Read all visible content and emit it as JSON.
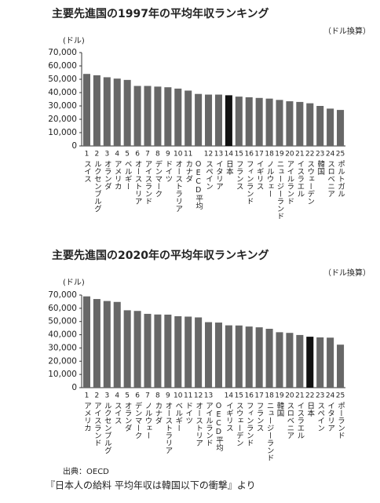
{
  "chart_data": [
    {
      "type": "bar",
      "title": "主要先進国の1997年の平均年収ランキング",
      "ylabel": "(ドル)",
      "unit_note": "（ドル換算）",
      "categories": [
        "スイス",
        "ルクセンブルグ",
        "オランダ",
        "アメリカ",
        "ベルギー",
        "オーストリア",
        "アイスランド",
        "デンマーク",
        "ドイツ",
        "オーストラリア",
        "カナダ",
        "OECD平均",
        "スペイン",
        "イタリア",
        "日本",
        "フランス",
        "フィンランド",
        "イギリス",
        "ノルウェー",
        "ニュージーランド",
        "アイルランド",
        "イスラエル",
        "スウェーデン",
        "韓国",
        "スロベニア",
        "ポルトガル"
      ],
      "ranks": [
        "1",
        "2",
        "3",
        "4",
        "5",
        "6",
        "7",
        "8",
        "9",
        "10",
        "11",
        null,
        "12",
        "13",
        "14",
        "15",
        "16",
        "17",
        "18",
        "19",
        "20",
        "21",
        "22",
        "23",
        "24",
        "25"
      ],
      "values": [
        54000,
        53000,
        51500,
        50500,
        49500,
        45000,
        45000,
        44500,
        44000,
        43000,
        41500,
        39000,
        38500,
        38500,
        38000,
        37000,
        36500,
        36000,
        35500,
        34500,
        33500,
        33000,
        32000,
        30000,
        28000,
        27000
      ],
      "colors": [
        "#676767",
        "#676767",
        "#676767",
        "#676767",
        "#676767",
        "#676767",
        "#676767",
        "#676767",
        "#676767",
        "#676767",
        "#676767",
        "#676767",
        "#676767",
        "#676767",
        "#111111",
        "#676767",
        "#676767",
        "#676767",
        "#676767",
        "#676767",
        "#676767",
        "#676767",
        "#676767",
        "#676767",
        "#676767",
        "#676767"
      ],
      "ylim": [
        0,
        70000
      ],
      "yticks": [
        0,
        {
          "value": 10000,
          "label": "10,000"
        },
        {
          "value": 20000,
          "label": "20,000"
        },
        {
          "value": 30000,
          "label": "30,000"
        },
        {
          "value": 40000,
          "label": "40,000"
        },
        {
          "value": 50000,
          "label": "50,000"
        },
        {
          "value": 60000,
          "label": "60,000"
        },
        {
          "value": 70000,
          "label": "70,000"
        }
      ]
    },
    {
      "type": "bar",
      "title": "主要先進国の2020年の平均年収ランキング",
      "ylabel": "(ドル)",
      "unit_note": "（ドル換算）",
      "categories": [
        "アメリカ",
        "アイスランド",
        "ルクセンブルグ",
        "スイス",
        "オランダ",
        "デンマーク",
        "ノルウェー",
        "カナダ",
        "オーストラリア",
        "ベルギー",
        "ドイツ",
        "オーストリア",
        "アイルランド",
        "OECD平均",
        "イギリス",
        "スウェーデン",
        "フィンランド",
        "フランス",
        "ニュージーランド",
        "韓国",
        "スロベニア",
        "イスラエル",
        "日本",
        "スペイン",
        "イタリア",
        "ポーランド"
      ],
      "ranks": [
        "1",
        "2",
        "3",
        "4",
        "5",
        "6",
        "7",
        "8",
        "9",
        "10",
        "11",
        "12",
        "13",
        null,
        "14",
        "15",
        "16",
        "17",
        "18",
        "19",
        "20",
        "21",
        "22",
        "23",
        "24",
        "25"
      ],
      "values": [
        69000,
        67000,
        65500,
        64800,
        58500,
        58000,
        55800,
        55300,
        55200,
        54000,
        53700,
        53100,
        49500,
        49200,
        47100,
        47000,
        46200,
        45600,
        44500,
        41900,
        41400,
        39800,
        38500,
        38000,
        37800,
        32500
      ],
      "colors": [
        "#676767",
        "#676767",
        "#676767",
        "#676767",
        "#676767",
        "#676767",
        "#676767",
        "#676767",
        "#676767",
        "#676767",
        "#676767",
        "#676767",
        "#676767",
        "#676767",
        "#676767",
        "#676767",
        "#676767",
        "#676767",
        "#676767",
        "#676767",
        "#676767",
        "#676767",
        "#111111",
        "#676767",
        "#676767",
        "#676767"
      ],
      "ylim": [
        0,
        70000
      ],
      "yticks": [
        0,
        {
          "value": 10000,
          "label": "10,000"
        },
        {
          "value": 20000,
          "label": "20,000"
        },
        {
          "value": 30000,
          "label": "30,000"
        },
        {
          "value": 40000,
          "label": "40,000"
        },
        {
          "value": 50000,
          "label": "50,000"
        },
        {
          "value": 60000,
          "label": "60,000"
        },
        {
          "value": 70000,
          "label": "70,000"
        }
      ]
    }
  ],
  "source": "出典：OECD",
  "caption": "『日本人の給料 平均年収は韓国以下の衝撃』より"
}
